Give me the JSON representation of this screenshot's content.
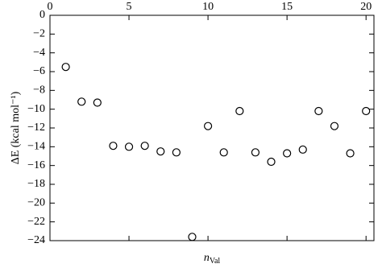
{
  "chart_data": {
    "type": "scatter",
    "xlabel": {
      "main": "n",
      "sub": "Val"
    },
    "ylabel": "ΔE (kcal mol⁻¹)",
    "x": [
      1,
      2,
      3,
      4,
      5,
      6,
      7,
      8,
      9,
      10,
      11,
      12,
      13,
      14,
      15,
      16,
      17,
      18,
      19,
      20
    ],
    "values": [
      -5.5,
      -9.2,
      -9.3,
      -13.9,
      -14.0,
      -13.9,
      -14.5,
      -14.6,
      -23.6,
      -11.8,
      -14.6,
      -10.2,
      -14.6,
      -15.6,
      -14.7,
      -14.3,
      -10.2,
      -11.8,
      -14.7,
      -10.2
    ],
    "color": "#000000",
    "xlim": [
      0,
      20.5
    ],
    "xticks": [
      0,
      5,
      10,
      15,
      20
    ],
    "ylim": [
      -24,
      0
    ],
    "yticks": [
      0,
      {
        "value": -2,
        "label": "−2"
      },
      {
        "value": -4,
        "label": "−4"
      },
      {
        "value": -6,
        "label": "−6"
      },
      {
        "value": -8,
        "label": "−8"
      },
      {
        "value": -10,
        "label": "−10"
      },
      {
        "value": -12,
        "label": "−12"
      },
      {
        "value": -14,
        "label": "−14"
      },
      {
        "value": -16,
        "label": "−16"
      },
      {
        "value": -18,
        "label": "−18"
      },
      {
        "value": -20,
        "label": "−20"
      },
      {
        "value": -22,
        "label": "−22"
      },
      {
        "value": -24,
        "label": "−24"
      }
    ]
  }
}
